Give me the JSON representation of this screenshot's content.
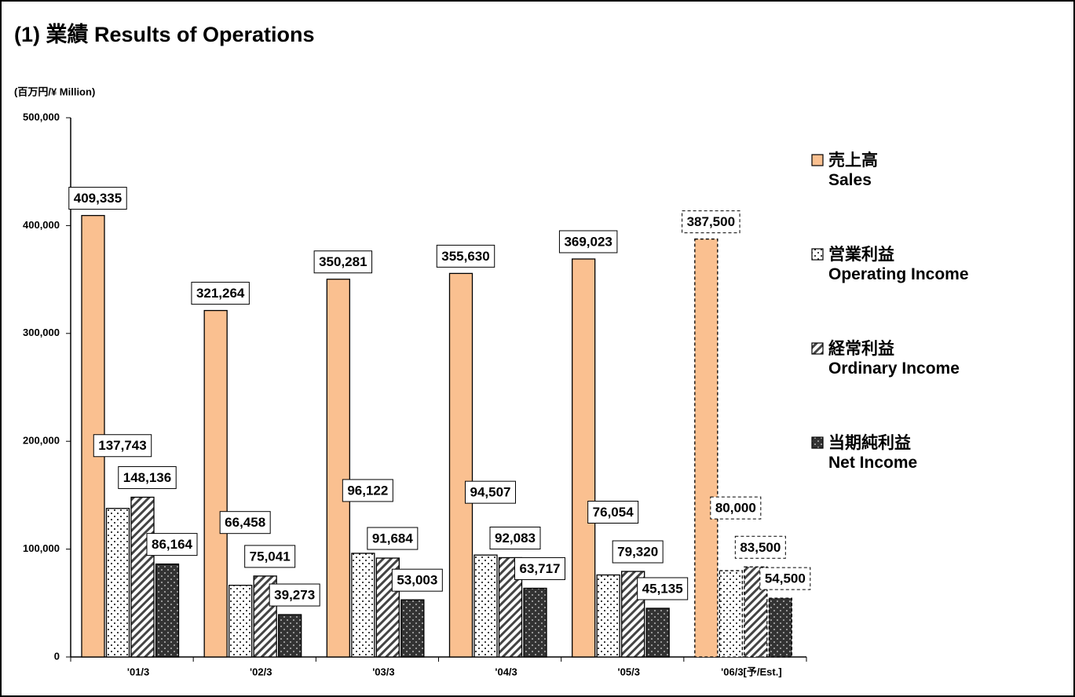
{
  "chart_data": {
    "type": "bar",
    "title": "(1) 業績 Results of Operations",
    "unit_label": "(百万円/¥ Million)",
    "categories": [
      "'01/3",
      "'02/3",
      "'03/3",
      "'04/3",
      "'05/3",
      "'06/3[予/Est.]"
    ],
    "series": [
      {
        "name": "売上高\nSales",
        "color": "#fac090",
        "pattern": "solid",
        "values": [
          409335,
          321264,
          350281,
          355630,
          369023,
          387500
        ],
        "value_labels": [
          "409,335",
          "321,264",
          "350,281",
          "355,630",
          "369,023",
          "387,500"
        ]
      },
      {
        "name": "営業利益\nOperating Income",
        "color": "#ffffff",
        "pattern": "dots",
        "values": [
          137743,
          66458,
          96122,
          94507,
          76054,
          80000
        ],
        "value_labels": [
          "137,743",
          "66,458",
          "96,122",
          "94,507",
          "76,054",
          "80,000"
        ]
      },
      {
        "name": "経常利益\nOrdinary Income",
        "color": "#ffffff",
        "pattern": "hatch",
        "values": [
          148136,
          75041,
          91684,
          92083,
          79320,
          83500
        ],
        "value_labels": [
          "148,136",
          "75,041",
          "91,684",
          "92,083",
          "79,320",
          "83,500"
        ]
      },
      {
        "name": "当期純利益\nNet Income",
        "color": "#333333",
        "pattern": "darkdots",
        "values": [
          86164,
          39273,
          53003,
          63717,
          45135,
          54500
        ],
        "value_labels": [
          "86,164",
          "39,273",
          "53,003",
          "63,717",
          "45,135",
          "54,500"
        ]
      }
    ],
    "ylim": [
      0,
      500000
    ],
    "yticks": [
      0,
      {
        "value": 100000,
        "label": "100,000"
      },
      {
        "value": 200000,
        "label": "200,000"
      },
      {
        "value": 300000,
        "label": "300,000"
      },
      {
        "value": 400000,
        "label": "400,000"
      },
      {
        "value": 500000,
        "label": "500,000"
      }
    ],
    "last_category_dashed": true,
    "legend": "right"
  }
}
